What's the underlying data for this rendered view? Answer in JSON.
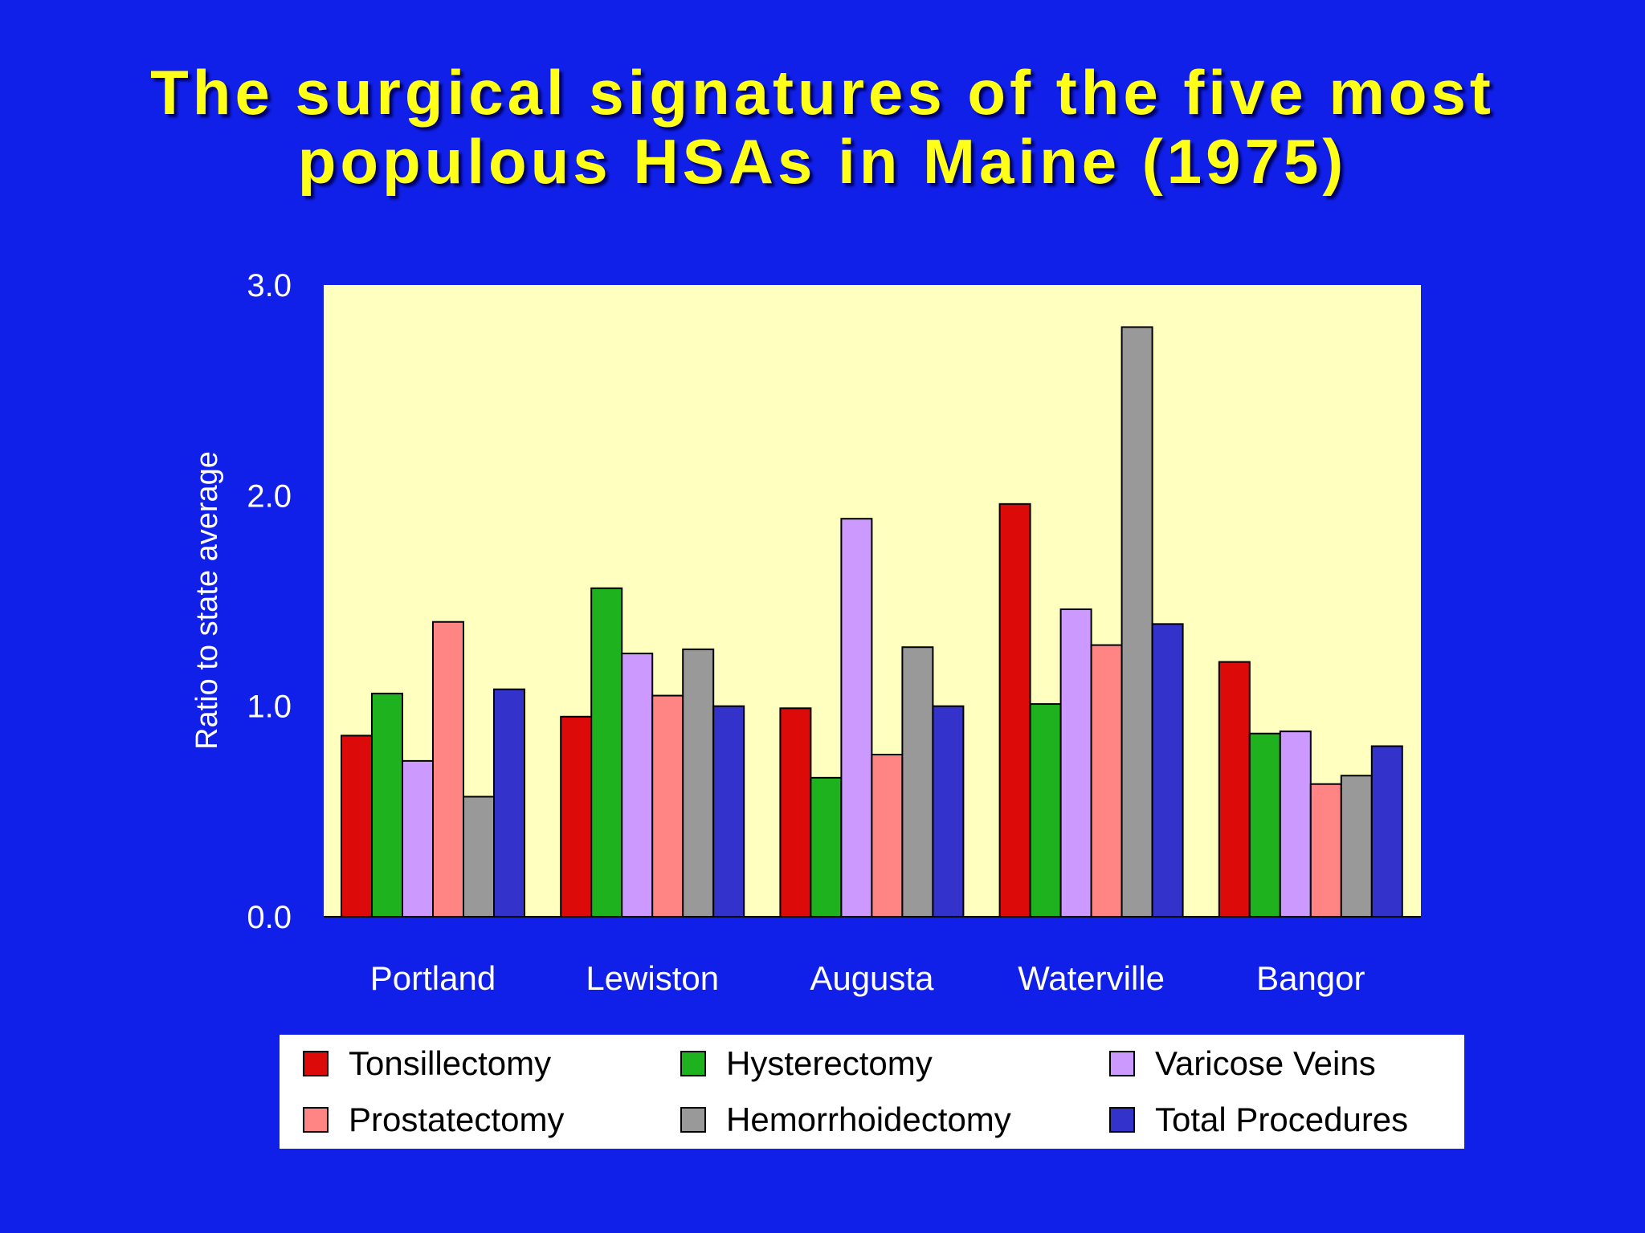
{
  "title": {
    "line1": "The surgical signatures of the five most",
    "line2": "populous HSAs in Maine (1975)"
  },
  "colors": {
    "background": "#1020e8",
    "plot_area": "#ffffc0",
    "title": "#ffff19"
  },
  "chart_data": {
    "type": "bar",
    "ylabel": "Ratio to state average",
    "xlabel": "",
    "ylim": [
      0,
      3.0
    ],
    "yticks": [
      "0.0",
      "1.0",
      "2.0",
      "3.0"
    ],
    "grid": false,
    "legend_position": "bottom",
    "categories": [
      "Portland",
      "Lewiston",
      "Augusta",
      "Waterville",
      "Bangor"
    ],
    "series": [
      {
        "name": "Tonsillectomy",
        "color": "#dd0a0a",
        "values": [
          0.86,
          0.95,
          0.99,
          1.96,
          1.21
        ]
      },
      {
        "name": "Hysterectomy",
        "color": "#1eb31e",
        "values": [
          1.06,
          1.56,
          0.66,
          1.01,
          0.87
        ]
      },
      {
        "name": "Varicose Veins",
        "color": "#cc99ff",
        "values": [
          0.74,
          1.25,
          1.89,
          1.46,
          0.88
        ]
      },
      {
        "name": "Prostatectomy",
        "color": "#ff8585",
        "values": [
          1.4,
          1.05,
          0.77,
          1.29,
          0.63
        ]
      },
      {
        "name": "Hemorrhoidectomy",
        "color": "#999999",
        "values": [
          0.57,
          1.27,
          1.28,
          2.8,
          0.67
        ]
      },
      {
        "name": "Total Procedures",
        "color": "#3333cc",
        "values": [
          1.08,
          1.0,
          1.0,
          1.39,
          0.81
        ]
      }
    ]
  }
}
